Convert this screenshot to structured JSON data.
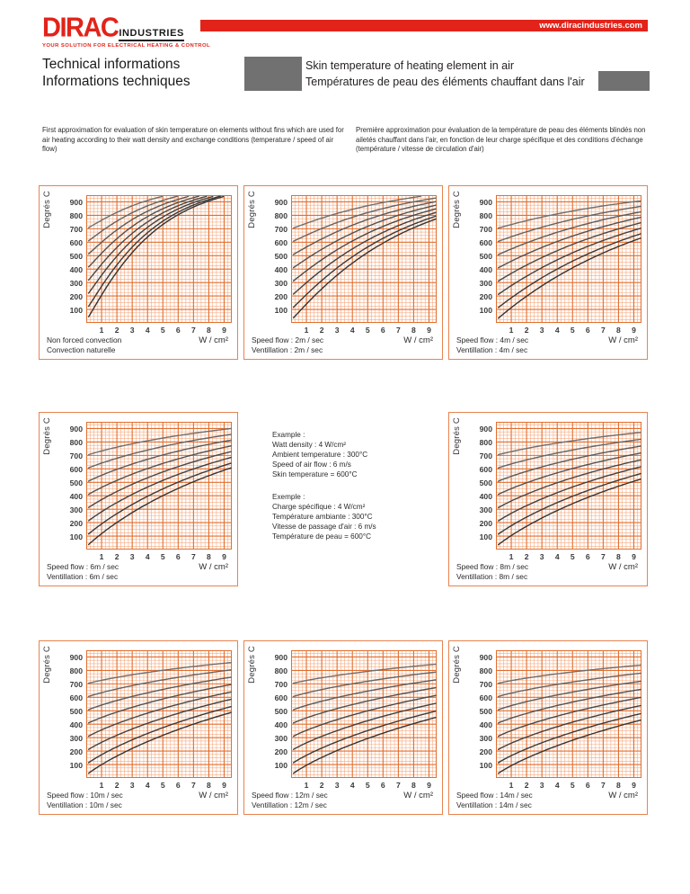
{
  "header": {
    "logo": {
      "brand": "DIRAC",
      "brand_suffix": "INDUSTRIES",
      "tagline": "YOUR SOLUTION FOR ELECTRICAL HEATING & CONTROL"
    },
    "url_bar": {
      "text": "www.diracindustries.com",
      "bg": "#e2231a"
    },
    "heading_en": "Technical informations",
    "heading_fr": "Informations techniques",
    "banner": {
      "line1": "Skin temperature of heating element in air",
      "line2": "Températures de peau des éléments chauffant dans l'air",
      "block_color": "#717171"
    }
  },
  "intro": {
    "en": "First approximation for evaluation of skin temperature on elements without fins which  are used for air heating according to their watt density and exchange conditions (temperature / speed of air flow)",
    "fr": "Première approximation pour évaluation de la température de peau des éléments blindés non ailetés chauffant dans l'air, en fonction de leur charge spécifique et des conditions d'échange (température / vitesse de circulation d'air)"
  },
  "example": {
    "en_lines": [
      "Example :",
      "Watt density : 4 W/cm²",
      "Ambient temperature : 300°C",
      "Speed of air flow : 6 m/s",
      "Skin temperature = 600°C"
    ],
    "fr_lines": [
      "Exemple :",
      "Charge spécifique : 4 W/cm²",
      "Température ambiante : 300°C",
      "Vitesse de passage d'air : 6 m/s",
      "Température de peau = 600°C"
    ]
  },
  "axes": {
    "y_label": "Degrés C",
    "x_unit": "W / cm²",
    "y_ticks": [
      900,
      800,
      700,
      600,
      500,
      400,
      300,
      200,
      100
    ],
    "x_ticks": [
      1,
      2,
      3,
      4,
      5,
      6,
      7,
      8,
      9
    ],
    "x_range": [
      0,
      9.5
    ],
    "y_range": [
      0,
      950
    ],
    "grid": "on",
    "x_minor_step": 0.25,
    "y_minor_step": 25
  },
  "colors": {
    "accent_red": "#e2231a",
    "banner_gray": "#717171",
    "card_border": "#e8834f",
    "grid_minor": "#f5aa80",
    "grid_major": "#e26e2e",
    "curve_grays": [
      "#6e6e6e",
      "#646464",
      "#5a5a5a",
      "#515151",
      "#484848",
      "#404040",
      "#3a3a3a",
      "#343434"
    ]
  },
  "chart_data": [
    {
      "id": "natural",
      "type": "line",
      "caption1": "Non forced convection",
      "caption2": "Convection naturelle",
      "ambients": [
        700,
        600,
        500,
        400,
        300,
        200,
        100,
        20
      ],
      "model": {
        "tmax": 1050,
        "k": 0.2,
        "p": 1.1
      }
    },
    {
      "id": "2m",
      "type": "line",
      "caption1": "Speed flow : 2m / sec",
      "caption2": "Ventillation : 2m / sec",
      "ambients": [
        700,
        600,
        500,
        400,
        300,
        200,
        100,
        20
      ],
      "model": {
        "tmax": 1050,
        "k": 0.124,
        "p": 1.05
      }
    },
    {
      "id": "4m",
      "type": "line",
      "caption1": "Speed flow : 4m / sec",
      "caption2": "Ventillation : 4m / sec",
      "ambients": [
        700,
        600,
        500,
        400,
        300,
        200,
        100,
        20
      ],
      "model": {
        "tmax": 1050,
        "k": 0.095,
        "p": 1.0
      }
    },
    {
      "id": "6m",
      "type": "line",
      "caption1": "Speed flow : 6m / sec",
      "caption2": "Ventillation : 6m / sec",
      "ambients": [
        700,
        600,
        500,
        400,
        300,
        200,
        100,
        20
      ],
      "model": {
        "tmax": 1050,
        "k": 0.1,
        "p": 0.95
      }
    },
    {
      "id": "8m",
      "type": "line",
      "caption1": "Speed flow : 8m / sec",
      "caption2": "Ventillation : 8m / sec",
      "ambients": [
        700,
        600,
        500,
        400,
        300,
        200,
        100,
        20
      ],
      "model": {
        "tmax": 1050,
        "k": 0.085,
        "p": 0.92
      }
    },
    {
      "id": "10m",
      "type": "line",
      "caption1": "Speed flow : 10m / sec",
      "caption2": "Ventillation : 10m / sec",
      "ambients": [
        700,
        600,
        500,
        400,
        300,
        200,
        100,
        20
      ],
      "model": {
        "tmax": 1050,
        "k": 0.08,
        "p": 0.9
      }
    },
    {
      "id": "12m",
      "type": "line",
      "caption1": "Speed flow : 12m / sec",
      "caption2": "Ventillation : 12m / sec",
      "ambients": [
        700,
        600,
        500,
        400,
        300,
        200,
        100,
        20
      ],
      "model": {
        "tmax": 1050,
        "k": 0.075,
        "p": 0.88
      }
    },
    {
      "id": "14m",
      "type": "line",
      "caption1": "Speed flow : 14m / sec",
      "caption2": "Ventillation : 14m / sec",
      "ambients": [
        700,
        600,
        500,
        400,
        300,
        200,
        100,
        20
      ],
      "model": {
        "tmax": 1050,
        "k": 0.072,
        "p": 0.87
      }
    }
  ]
}
